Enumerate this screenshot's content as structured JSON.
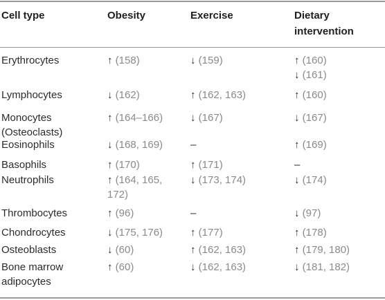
{
  "headers": [
    "Cell type",
    "Obesity",
    "Exercise",
    "Dietary intervention"
  ],
  "rows": [
    {
      "cells": [
        {
          "lines": [
            "Erythrocytes"
          ]
        },
        {
          "lines": [
            {
              "arrow": "↑",
              "ref": "(158)"
            }
          ]
        },
        {
          "lines": [
            {
              "arrow": "↓",
              "ref": "(159)"
            }
          ]
        },
        {
          "lines": [
            {
              "arrow": "↑",
              "ref": "(160)"
            },
            {
              "arrow": "↓",
              "ref": "(161)"
            }
          ]
        }
      ]
    },
    {
      "cells": [
        {
          "lines": [
            "Lymphocytes"
          ]
        },
        {
          "lines": [
            {
              "arrow": "↓",
              "ref": "(162)"
            }
          ]
        },
        {
          "lines": [
            {
              "arrow": "↑",
              "ref": "(162, 163)"
            }
          ]
        },
        {
          "lines": [
            {
              "arrow": "↑",
              "ref": "(160)"
            }
          ]
        }
      ]
    },
    {
      "cells": [
        {
          "lines": [
            "Monocytes",
            "(Osteoclasts)"
          ]
        },
        {
          "lines": [
            {
              "arrow": "↑",
              "ref": "(164–166)"
            }
          ]
        },
        {
          "lines": [
            {
              "arrow": "↓",
              "ref": "(167)"
            }
          ]
        },
        {
          "lines": [
            {
              "arrow": "↓",
              "ref": "(167)"
            }
          ]
        }
      ]
    },
    {
      "cells": [
        {
          "lines": [
            "Eosinophils"
          ]
        },
        {
          "lines": [
            {
              "arrow": "↓",
              "ref": "(168, 169)"
            }
          ]
        },
        {
          "lines": [
            "–"
          ]
        },
        {
          "lines": [
            {
              "arrow": "↑",
              "ref": "(169)"
            }
          ]
        }
      ]
    },
    {
      "cells": [
        {
          "lines": [
            "Basophils"
          ]
        },
        {
          "lines": [
            {
              "arrow": "↑",
              "ref": "(170)"
            }
          ]
        },
        {
          "lines": [
            {
              "arrow": "↑",
              "ref": "(171)"
            }
          ]
        },
        {
          "lines": [
            "–"
          ]
        }
      ]
    },
    {
      "cells": [
        {
          "lines": [
            "Neutrophils"
          ]
        },
        {
          "lines": [
            {
              "arrow": "↑",
              "ref": "(164, 165,"
            },
            {
              "arrow": "",
              "ref": "172)"
            }
          ]
        },
        {
          "lines": [
            {
              "arrow": "↓",
              "ref": "(173, 174)"
            }
          ]
        },
        {
          "lines": [
            {
              "arrow": "↓",
              "ref": "(174)"
            }
          ]
        }
      ]
    },
    {
      "cells": [
        {
          "lines": [
            "Thrombocytes"
          ]
        },
        {
          "lines": [
            {
              "arrow": "↑",
              "ref": "(96)"
            }
          ]
        },
        {
          "lines": [
            "–"
          ]
        },
        {
          "lines": [
            {
              "arrow": "↓",
              "ref": "(97)"
            }
          ]
        }
      ]
    },
    {
      "cells": [
        {
          "lines": [
            "Chondrocytes"
          ]
        },
        {
          "lines": [
            {
              "arrow": "↓",
              "ref": "(175, 176)"
            }
          ]
        },
        {
          "lines": [
            {
              "arrow": "↑",
              "ref": "(177)"
            }
          ]
        },
        {
          "lines": [
            {
              "arrow": "↑",
              "ref": "(178)"
            }
          ]
        }
      ]
    },
    {
      "cells": [
        {
          "lines": [
            "Osteoblasts"
          ]
        },
        {
          "lines": [
            {
              "arrow": "↓",
              "ref": "(60)"
            }
          ]
        },
        {
          "lines": [
            {
              "arrow": "↑",
              "ref": "(162, 163)"
            }
          ]
        },
        {
          "lines": [
            {
              "arrow": "↑",
              "ref": "(179, 180)"
            }
          ]
        }
      ]
    },
    {
      "cells": [
        {
          "lines": [
            "Bone marrow",
            "adipocytes"
          ]
        },
        {
          "lines": [
            {
              "arrow": "↑",
              "ref": "(60)"
            }
          ]
        },
        {
          "lines": [
            {
              "arrow": "↓",
              "ref": "(162, 163)"
            }
          ]
        },
        {
          "lines": [
            {
              "arrow": "↓",
              "ref": "(181, 182)"
            }
          ]
        }
      ]
    }
  ]
}
